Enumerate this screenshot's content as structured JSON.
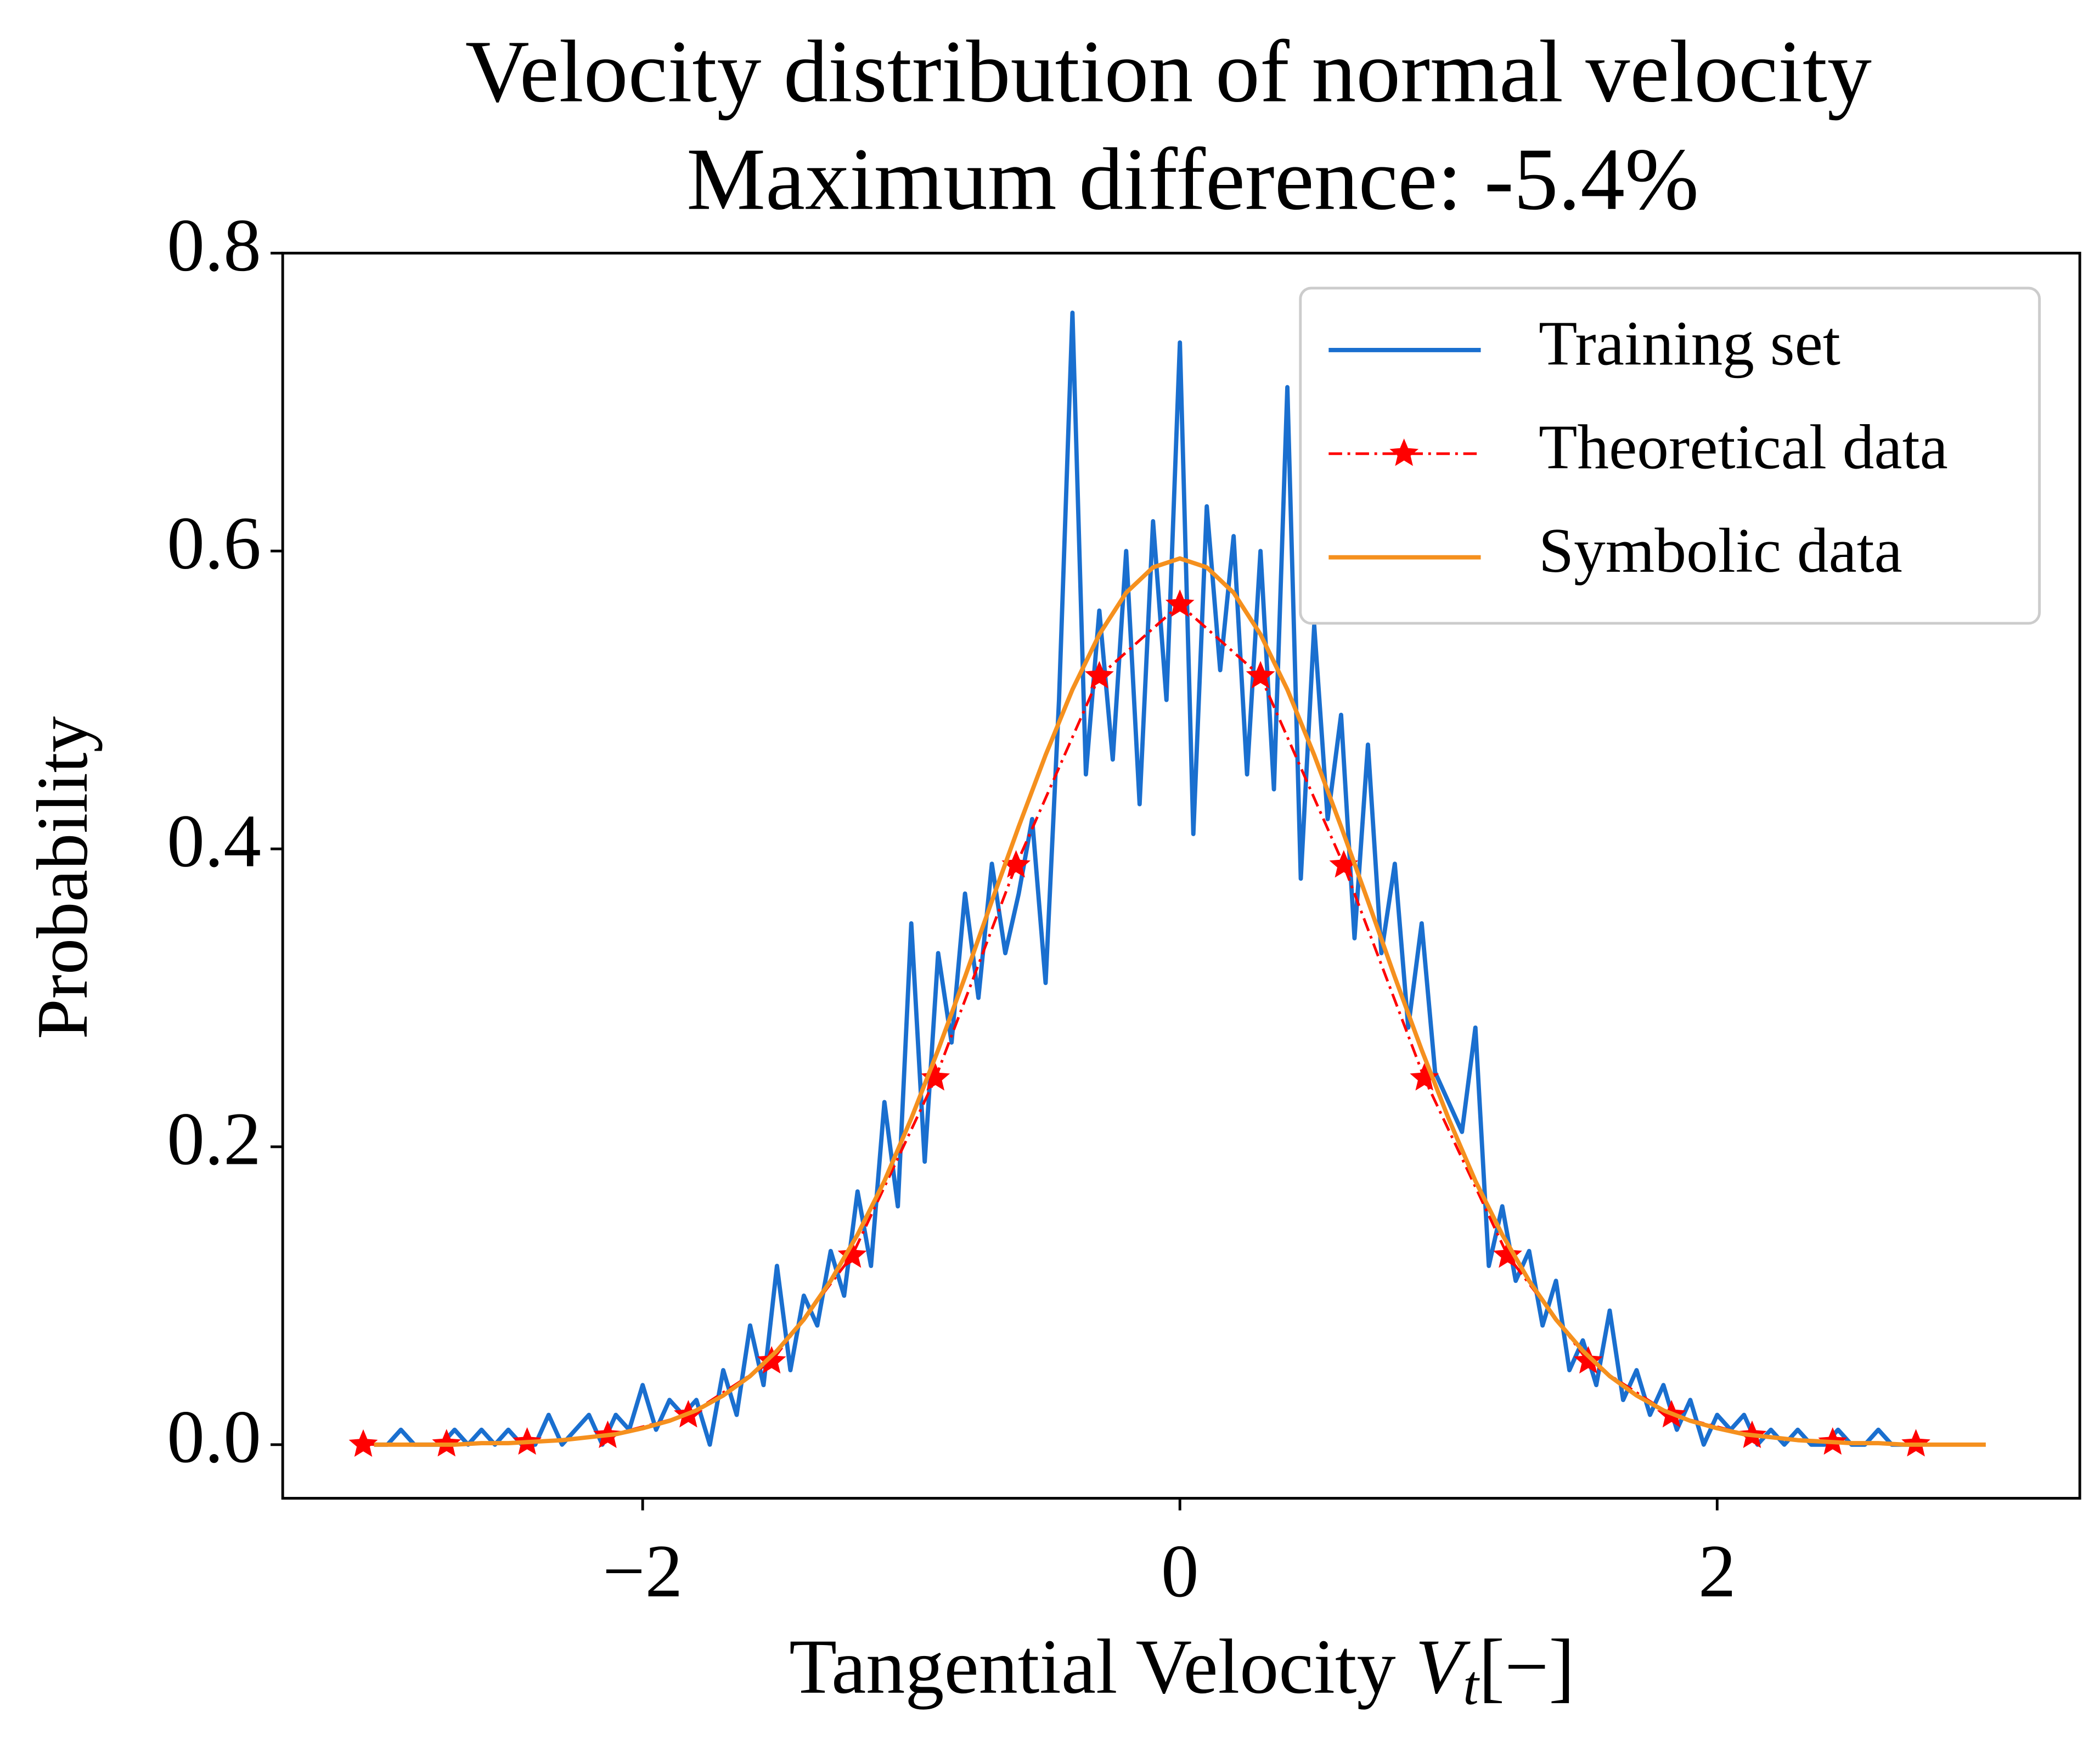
{
  "chart_data": {
    "type": "line",
    "title": [
      "Velocity distribution of normal velocity",
      "Maximum difference: -5.4%"
    ],
    "xlabel": {
      "text": "Tangential Velocity ",
      "var": "V",
      "sub": "t",
      "unit": "[−]"
    },
    "ylabel": "Probability",
    "xlim": [
      -3.34,
      3.35
    ],
    "ylim": [
      -0.036,
      0.8
    ],
    "xticks": [
      {
        "value": -2,
        "label": "−2"
      },
      0,
      2
    ],
    "yticks": [
      {
        "value": 0,
        "label": "0.0"
      },
      {
        "value": 0.2,
        "label": "0.2"
      },
      {
        "value": 0.4,
        "label": "0.4"
      },
      {
        "value": 0.6,
        "label": "0.6"
      },
      {
        "value": 0.8,
        "label": "0.8"
      }
    ],
    "grid": false,
    "legend": "upper right",
    "series": [
      {
        "name": "Training set",
        "color": "#1a6fcf",
        "linestyle": "solid",
        "marker": "none",
        "x": [
          -3.0,
          -2.95,
          -2.9,
          -2.85,
          -2.8,
          -2.75,
          -2.7,
          -2.65,
          -2.6,
          -2.55,
          -2.5,
          -2.45,
          -2.4,
          -2.35,
          -2.3,
          -2.25,
          -2.2,
          -2.15,
          -2.1,
          -2.05,
          -2.0,
          -1.95,
          -1.9,
          -1.85,
          -1.8,
          -1.75,
          -1.7,
          -1.65,
          -1.6,
          -1.55,
          -1.5,
          -1.45,
          -1.4,
          -1.35,
          -1.3,
          -1.25,
          -1.2,
          -1.15,
          -1.1,
          -1.05,
          -1.0,
          -0.95,
          -0.9,
          -0.85,
          -0.8,
          -0.75,
          -0.7,
          -0.65,
          -0.6,
          -0.55,
          -0.5,
          -0.45,
          -0.4,
          -0.35,
          -0.3,
          -0.25,
          -0.2,
          -0.15,
          -0.1,
          -0.05,
          0.0,
          0.05,
          0.1,
          0.15,
          0.2,
          0.25,
          0.3,
          0.35,
          0.4,
          0.45,
          0.5,
          0.55,
          0.6,
          0.65,
          0.7,
          0.75,
          0.8,
          0.85,
          0.9,
          0.95,
          1.0,
          1.05,
          1.1,
          1.15,
          1.2,
          1.25,
          1.3,
          1.35,
          1.4,
          1.45,
          1.5,
          1.55,
          1.6,
          1.65,
          1.7,
          1.75,
          1.8,
          1.85,
          1.9,
          1.95,
          2.0,
          2.05,
          2.1,
          2.15,
          2.2,
          2.25,
          2.3,
          2.35,
          2.4,
          2.45,
          2.5,
          2.55,
          2.6,
          2.65,
          2.7,
          2.75
        ],
        "values": [
          0,
          0,
          0.01,
          0,
          0,
          0,
          0.01,
          0,
          0.01,
          0,
          0.01,
          0,
          0,
          0.02,
          0,
          0.01,
          0.02,
          0,
          0.02,
          0.01,
          0.04,
          0.01,
          0.03,
          0.02,
          0.03,
          0,
          0.05,
          0.02,
          0.08,
          0.04,
          0.12,
          0.05,
          0.1,
          0.08,
          0.13,
          0.1,
          0.17,
          0.12,
          0.23,
          0.16,
          0.35,
          0.19,
          0.33,
          0.27,
          0.37,
          0.3,
          0.39,
          0.33,
          0.37,
          0.42,
          0.31,
          0.5,
          0.76,
          0.45,
          0.56,
          0.46,
          0.6,
          0.43,
          0.62,
          0.5,
          0.74,
          0.41,
          0.63,
          0.52,
          0.61,
          0.45,
          0.6,
          0.44,
          0.71,
          0.38,
          0.55,
          0.42,
          0.49,
          0.34,
          0.47,
          0.33,
          0.39,
          0.28,
          0.35,
          0.25,
          0.23,
          0.21,
          0.28,
          0.12,
          0.16,
          0.11,
          0.13,
          0.08,
          0.11,
          0.05,
          0.07,
          0.04,
          0.09,
          0.03,
          0.05,
          0.02,
          0.04,
          0.01,
          0.03,
          0,
          0.02,
          0.01,
          0.02,
          0,
          0.01,
          0,
          0.01,
          0,
          0,
          0.01,
          0,
          0,
          0.01,
          0,
          0,
          0
        ]
      },
      {
        "name": "Theoretical data",
        "color": "#ff0000",
        "linestyle": "dashdot",
        "marker": "star",
        "x": [
          -3.04,
          -2.73,
          -2.43,
          -2.13,
          -1.83,
          -1.52,
          -1.22,
          -0.91,
          -0.61,
          -0.3,
          0,
          0.3,
          0.61,
          0.91,
          1.22,
          1.52,
          1.83,
          2.13,
          2.43,
          2.74
        ],
        "values": [
          0.0001,
          0.0003,
          0.0015,
          0.006,
          0.0198,
          0.056,
          0.127,
          0.246,
          0.389,
          0.516,
          0.564,
          0.516,
          0.389,
          0.246,
          0.127,
          0.056,
          0.0198,
          0.006,
          0.0015,
          0.0003
        ]
      },
      {
        "name": "Symbolic data",
        "color": "#f5901e",
        "linestyle": "solid",
        "marker": "none",
        "x": [
          -3.0,
          -2.9,
          -2.8,
          -2.7,
          -2.6,
          -2.5,
          -2.4,
          -2.3,
          -2.2,
          -2.1,
          -2.0,
          -1.9,
          -1.8,
          -1.7,
          -1.6,
          -1.5,
          -1.4,
          -1.3,
          -1.2,
          -1.1,
          -1.0,
          -0.9,
          -0.8,
          -0.7,
          -0.6,
          -0.5,
          -0.4,
          -0.3,
          -0.2,
          -0.1,
          0.0,
          0.1,
          0.2,
          0.3,
          0.4,
          0.5,
          0.6,
          0.7,
          0.8,
          0.9,
          1.0,
          1.1,
          1.2,
          1.3,
          1.4,
          1.5,
          1.6,
          1.7,
          1.8,
          1.9,
          2.0,
          2.1,
          2.2,
          2.3,
          2.4,
          2.5,
          2.6,
          2.7,
          2.8,
          2.9,
          3.0
        ],
        "values": [
          0,
          0,
          0,
          0,
          0.001,
          0.001,
          0.002,
          0.003,
          0.005,
          0.007,
          0.011,
          0.016,
          0.023,
          0.033,
          0.046,
          0.063,
          0.084,
          0.11,
          0.141,
          0.177,
          0.219,
          0.265,
          0.314,
          0.365,
          0.415,
          0.463,
          0.507,
          0.544,
          0.572,
          0.589,
          0.595,
          0.589,
          0.572,
          0.544,
          0.507,
          0.463,
          0.415,
          0.365,
          0.314,
          0.265,
          0.219,
          0.177,
          0.141,
          0.11,
          0.084,
          0.063,
          0.046,
          0.033,
          0.023,
          0.016,
          0.011,
          0.007,
          0.005,
          0.003,
          0.002,
          0.001,
          0.001,
          0,
          0,
          0,
          0
        ]
      }
    ]
  }
}
